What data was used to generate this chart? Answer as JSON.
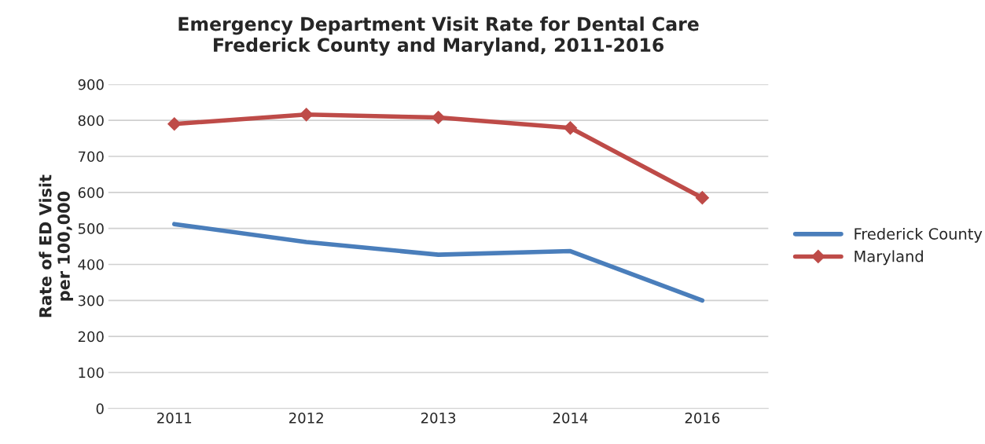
{
  "chart_data": {
    "type": "line",
    "title": "Emergency Department Visit Rate for Dental Care\nFrederick County and Maryland, 2011-2016",
    "ylabel": "Rate of ED Visit\nper 100,000",
    "categories": [
      "2011",
      "2012",
      "2013",
      "2014",
      "2016"
    ],
    "series": [
      {
        "name": "Frederick County",
        "color": "#4a7ebb",
        "values": [
          512,
          462,
          427,
          437,
          300
        ],
        "marker": "none"
      },
      {
        "name": "Maryland",
        "color": "#be4b48",
        "values": [
          790,
          816,
          808,
          779,
          585
        ],
        "marker": "diamond"
      }
    ],
    "ylim": [
      0,
      900
    ],
    "yticks": [
      0,
      100,
      200,
      300,
      400,
      500,
      600,
      700,
      800,
      900
    ],
    "grid": "y",
    "legend": "right",
    "line_style": "solid"
  }
}
